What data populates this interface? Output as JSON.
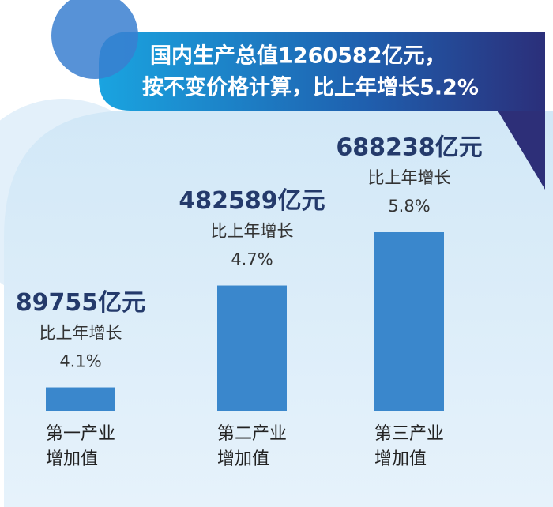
{
  "chart_data": {
    "type": "bar",
    "title": [
      "国内生产总值1260582亿元，",
      "按不变价格计算，比上年增长5.2%"
    ],
    "categories": [
      [
        "第一产业",
        "增加值"
      ],
      [
        "第二产业",
        "增加值"
      ],
      [
        "第三产业",
        "增加值"
      ]
    ],
    "values": [
      89755,
      482589,
      688238
    ],
    "value_labels": [
      "89755亿元",
      "482589亿元",
      "688238亿元"
    ],
    "growth_text": "比上年增长",
    "growth": [
      "4.1%",
      "4.7%",
      "5.8%"
    ],
    "color": "#3a87cc"
  }
}
